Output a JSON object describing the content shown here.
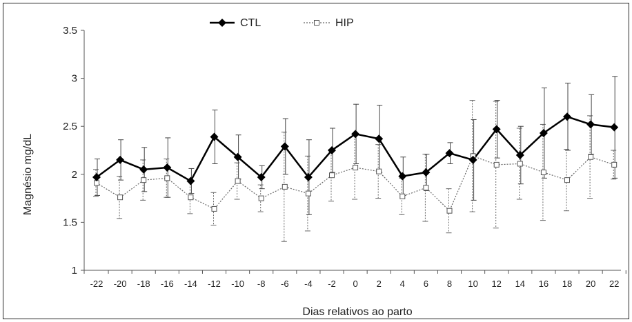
{
  "chart_data": {
    "type": "line",
    "xlabel": "Dias relativos ao parto",
    "ylabel": "Magnésio mg/dL",
    "ylim": [
      1,
      3.5
    ],
    "yticks": [
      "1",
      "1.5",
      "2",
      "2.5",
      "3",
      "3.5"
    ],
    "x": [
      -22,
      -20,
      -18,
      -16,
      -14,
      -12,
      -10,
      -8,
      -6,
      -4,
      -2,
      0,
      2,
      4,
      6,
      8,
      10,
      12,
      14,
      16,
      18,
      20,
      22
    ],
    "legend_position": "top",
    "grid": false,
    "series": [
      {
        "name": "CTL",
        "style": "solid-black-diamond",
        "color": "#000000",
        "values": [
          1.97,
          2.15,
          2.05,
          2.07,
          1.93,
          2.39,
          2.18,
          1.97,
          2.29,
          1.97,
          2.25,
          2.42,
          2.37,
          1.98,
          2.02,
          2.22,
          2.15,
          2.47,
          2.2,
          2.43,
          2.6,
          2.52,
          2.49
        ],
        "error": [
          0.19,
          0.21,
          0.23,
          0.31,
          0.13,
          0.28,
          0.23,
          0.12,
          0.29,
          0.39,
          0.23,
          0.31,
          0.35,
          0.2,
          0.19,
          0.11,
          0.42,
          0.3,
          0.3,
          0.47,
          0.35,
          0.31,
          0.53
        ]
      },
      {
        "name": "HIP",
        "style": "dotted-open-square",
        "color": "#555555",
        "values": [
          1.91,
          1.76,
          1.94,
          1.96,
          1.76,
          1.64,
          1.93,
          1.75,
          1.87,
          1.8,
          1.99,
          2.07,
          2.03,
          1.77,
          1.86,
          1.62,
          2.19,
          2.1,
          2.11,
          2.02,
          1.94,
          2.18,
          2.1
        ],
        "error": [
          0.14,
          0.22,
          0.21,
          0.2,
          0.17,
          0.17,
          0.19,
          0.14,
          0.57,
          0.39,
          0.27,
          0.33,
          0.28,
          0.19,
          0.35,
          0.23,
          0.58,
          0.66,
          0.37,
          0.5,
          0.32,
          0.43,
          0.15
        ]
      }
    ]
  }
}
